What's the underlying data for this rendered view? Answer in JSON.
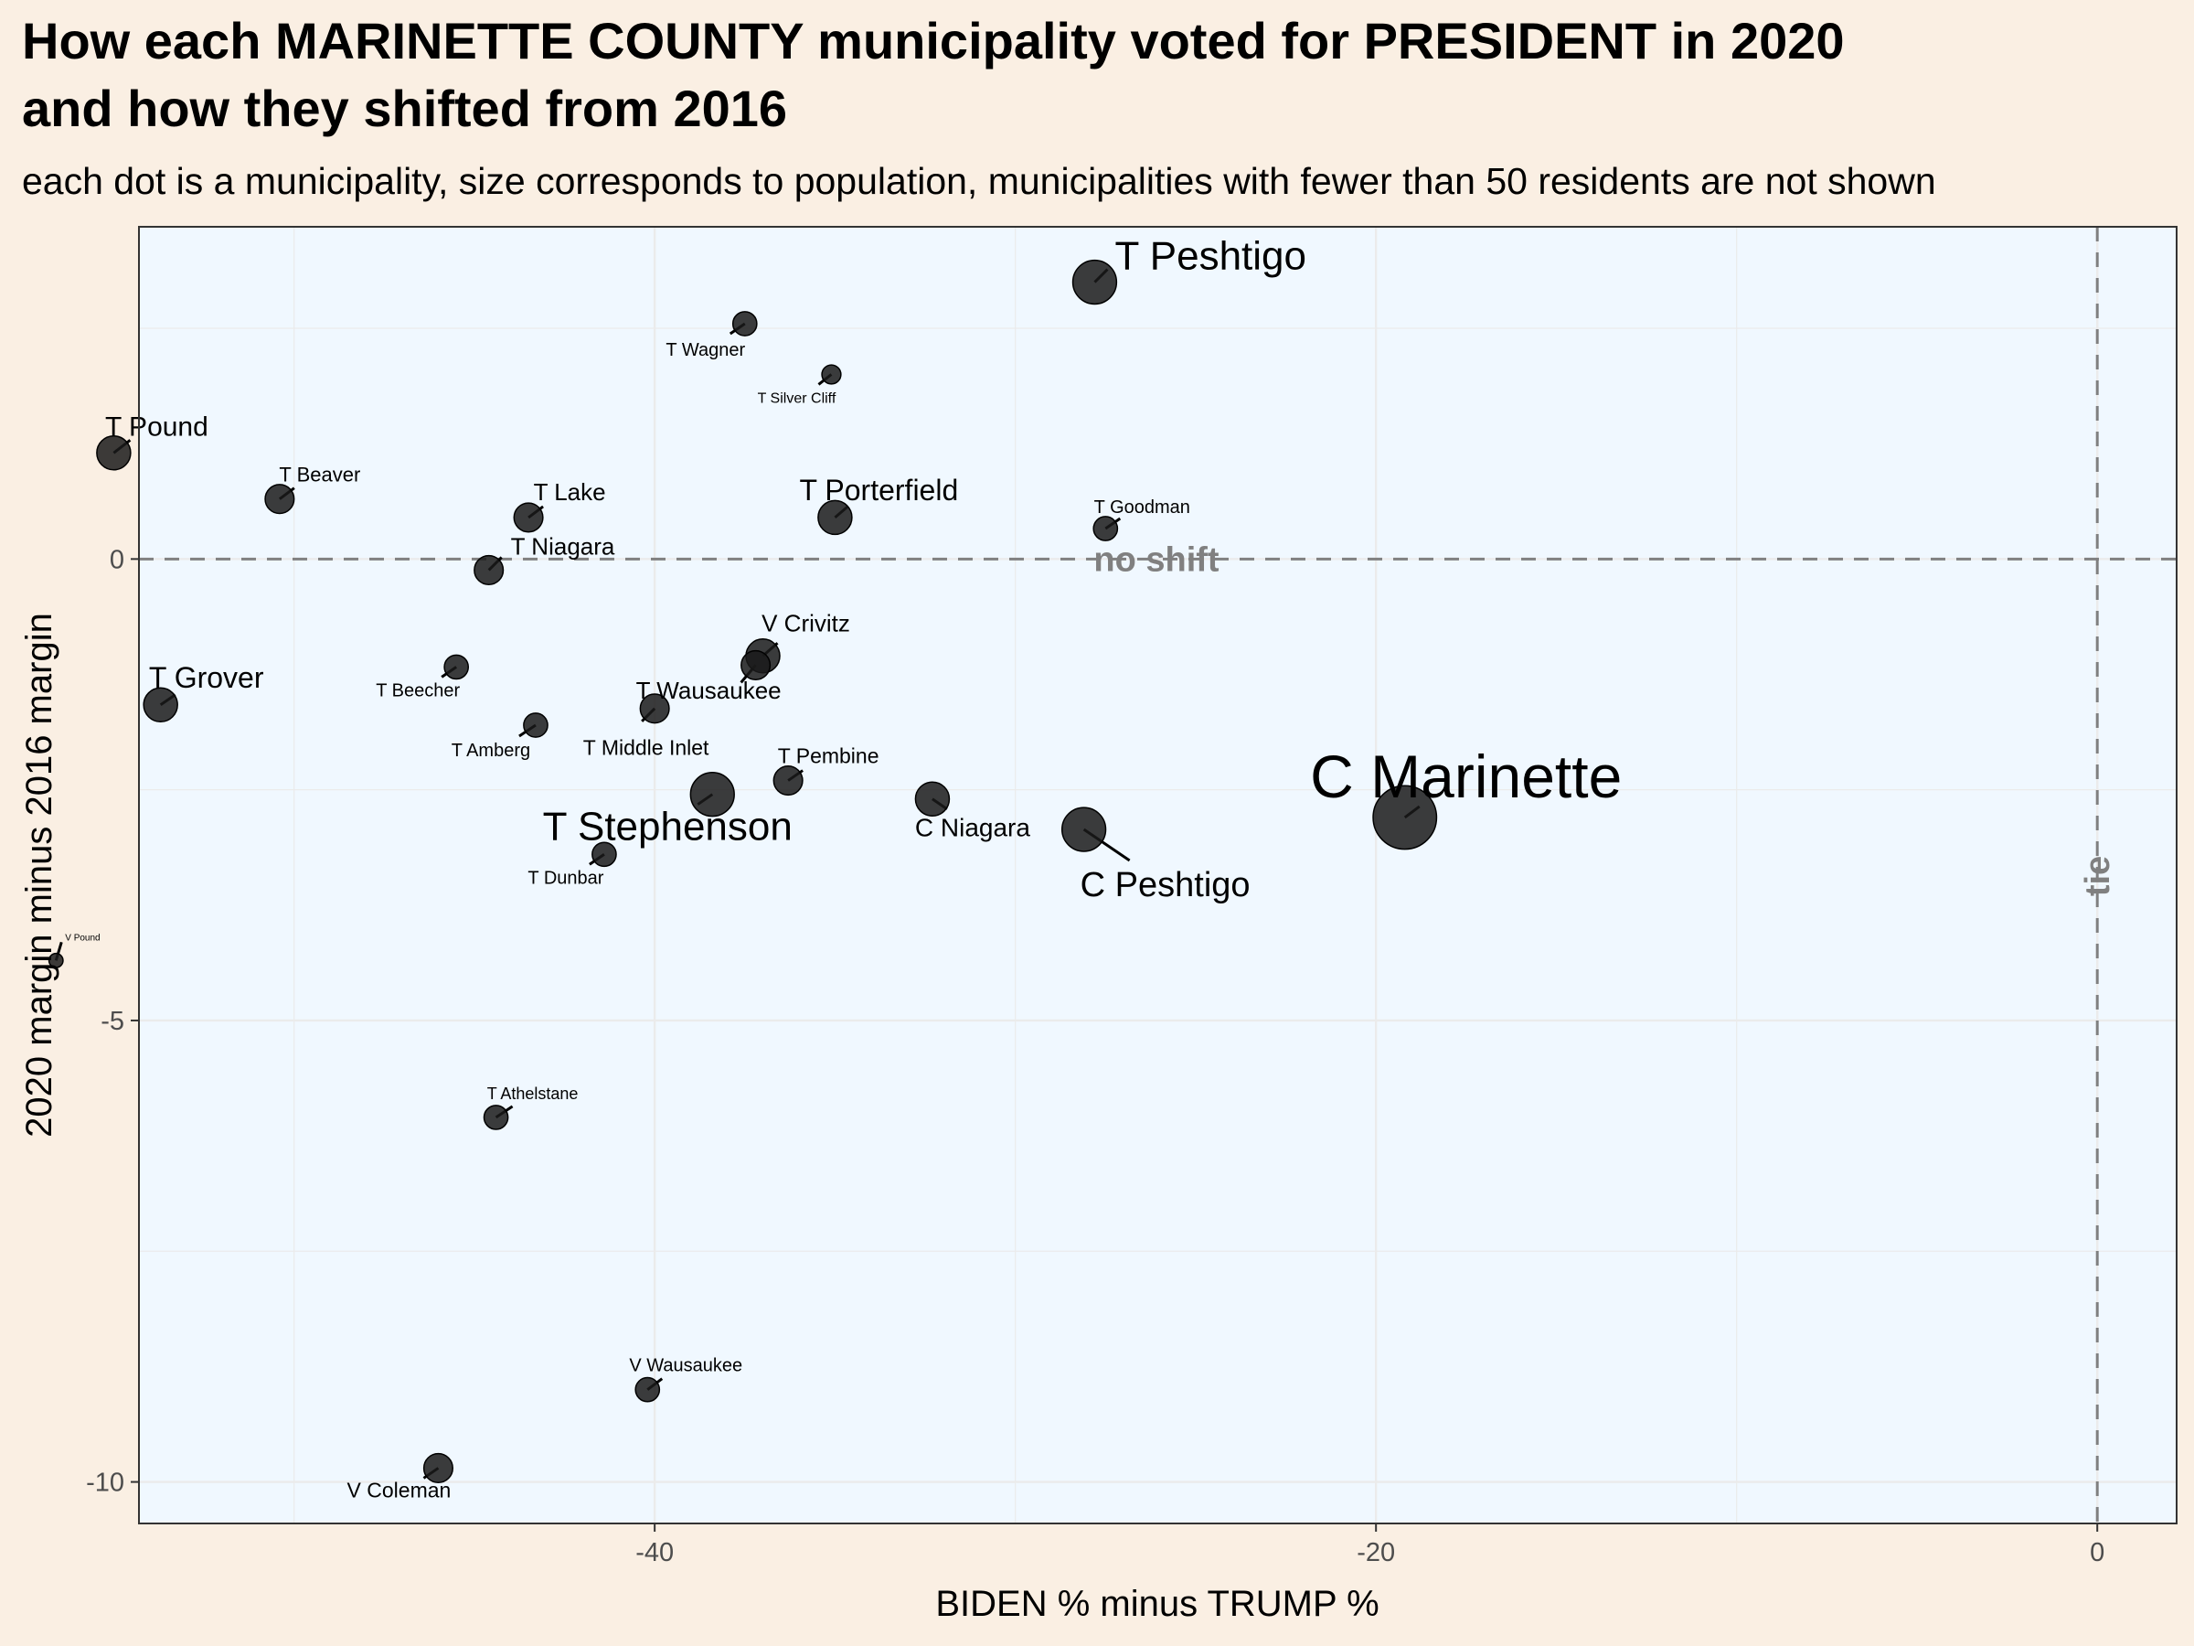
{
  "title_line1": "How each MARINETTE COUNTY municipality voted for PRESIDENT in 2020",
  "title_line2": "and how they shifted from 2016",
  "subtitle": "each dot is a municipality, size corresponds to population, municipalities with fewer than 50 residents are not shown",
  "colors": {
    "page_background": "#faefe3",
    "panel_background": "#f0f8ff",
    "point_fill": "#1a1a1a",
    "reference_line": "#808080",
    "gridline": "#ebebeb"
  },
  "chart_data": {
    "type": "scatter",
    "title": "How each MARINETTE COUNTY municipality voted for PRESIDENT in 2020 and how they shifted from 2016",
    "xlabel": "BIDEN % minus TRUMP %",
    "ylabel": "2020 margin minus 2016 margin",
    "xlim": [
      -54.3,
      2.2
    ],
    "ylim": [
      -10.45,
      3.6
    ],
    "x_ticks": [
      -40,
      -20,
      0
    ],
    "x_tick_labels": [
      "-40",
      "-20",
      "0"
    ],
    "y_ticks": [
      0,
      -5,
      -10
    ],
    "y_tick_labels": [
      "0",
      "-5",
      "-10"
    ],
    "grid": true,
    "reference_lines": [
      {
        "axis": "y",
        "value": 0,
        "label": "no shift"
      },
      {
        "axis": "x",
        "value": 0,
        "label": "tie"
      }
    ],
    "points": [
      {
        "name": "T Peshtigo",
        "x": -27.8,
        "y": 3.0,
        "size": 7
      },
      {
        "name": "T Wagner",
        "x": -37.5,
        "y": 2.55,
        "size": 3
      },
      {
        "name": "T Silver Cliff",
        "x": -35.1,
        "y": 2.0,
        "size": 2
      },
      {
        "name": "T Pound",
        "x": -55.0,
        "y": 1.15,
        "size": 5
      },
      {
        "name": "T Beaver",
        "x": -50.4,
        "y": 0.65,
        "size": 4
      },
      {
        "name": "T Lake",
        "x": -43.5,
        "y": 0.45,
        "size": 4
      },
      {
        "name": "T Porterfield",
        "x": -35.0,
        "y": 0.45,
        "size": 5
      },
      {
        "name": "T Goodman",
        "x": -27.5,
        "y": 0.33,
        "size": 3
      },
      {
        "name": "T Niagara",
        "x": -44.6,
        "y": -0.12,
        "size": 4
      },
      {
        "name": "V Crivitz",
        "x": -37.0,
        "y": -1.05,
        "size": 5
      },
      {
        "name": "T Beecher",
        "x": -45.5,
        "y": -1.17,
        "size": 3
      },
      {
        "name": "T Grover",
        "x": -53.7,
        "y": -1.58,
        "size": 5
      },
      {
        "name": "T Wausaukee",
        "x": -40.0,
        "y": -1.62,
        "size": 4
      },
      {
        "name": "T Amberg",
        "x": -43.3,
        "y": -1.8,
        "size": 3
      },
      {
        "name": "T Middle Inlet",
        "x": -37.2,
        "y": -1.15,
        "size": 4
      },
      {
        "name": "T Pembine",
        "x": -36.3,
        "y": -2.4,
        "size": 4
      },
      {
        "name": "T Stephenson",
        "x": -38.4,
        "y": -2.55,
        "size": 7
      },
      {
        "name": "C Niagara",
        "x": -32.3,
        "y": -2.6,
        "size": 5
      },
      {
        "name": "C Peshtigo",
        "x": -28.1,
        "y": -2.93,
        "size": 7
      },
      {
        "name": "C Marinette",
        "x": -19.2,
        "y": -2.8,
        "size": 11
      },
      {
        "name": "T Dunbar",
        "x": -41.4,
        "y": -3.2,
        "size": 3
      },
      {
        "name": "V Pound",
        "x": -56.6,
        "y": -4.35,
        "size": 1
      },
      {
        "name": "T Athelstane",
        "x": -44.4,
        "y": -6.05,
        "size": 3
      },
      {
        "name": "V Wausaukee",
        "x": -40.2,
        "y": -9.0,
        "size": 3
      },
      {
        "name": "V Coleman",
        "x": -46.0,
        "y": -9.85,
        "size": 4
      }
    ]
  }
}
